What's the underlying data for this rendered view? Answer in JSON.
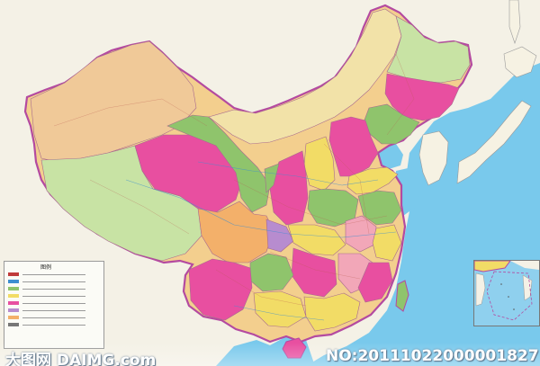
{
  "map": {
    "legend_title": "图例",
    "colors": {
      "sea": "#6fc4ea",
      "land_outside": "#f4f1e6",
      "border": "#b44aa0",
      "magenta": "#e84fa0",
      "green": "#8fc46c",
      "yellow": "#f2dc66",
      "orange": "#f3b06a",
      "tan": "#f3cf8e",
      "pink": "#f2a7b8",
      "light_green": "#c8e3a4",
      "purple": "#b78ccf"
    }
  },
  "watermark": {
    "site_logo": "大图网 DAIMG.com",
    "image_no": "NO:20111022000001827"
  }
}
